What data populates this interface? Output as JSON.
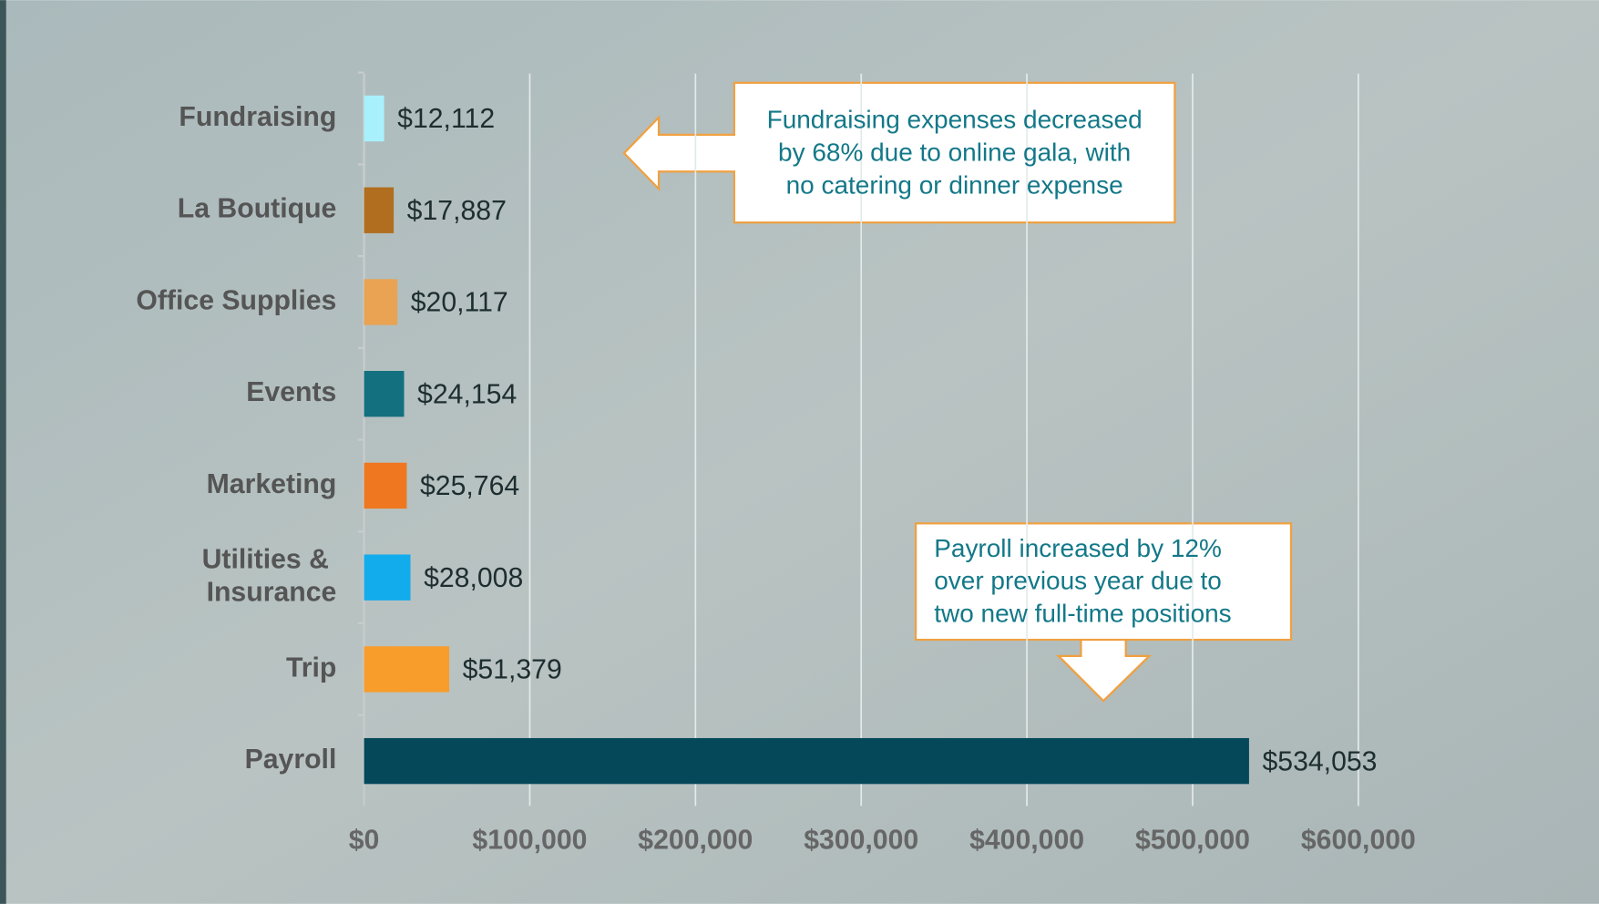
{
  "chart_data": {
    "type": "bar",
    "orientation": "horizontal",
    "categories": [
      "Fundraising",
      "La Boutique",
      "Office Supplies",
      "Events",
      "Marketing",
      "Utilities & Insurance",
      "Trip",
      "Payroll"
    ],
    "values": [
      12112,
      17887,
      20117,
      24154,
      25764,
      28008,
      51379,
      534053
    ],
    "value_labels": [
      "$12,112",
      "$17,887",
      "$20,117",
      "$24,154",
      "$25,764",
      "$28,008",
      "$51,379",
      "$534,053"
    ],
    "colors": [
      "#a8f0fc",
      "#b06e1e",
      "#e9a352",
      "#13707f",
      "#ef7720",
      "#12acec",
      "#f89c2c",
      "#04485a"
    ],
    "xlim": [
      0,
      600000
    ],
    "xticks": [
      {
        "value": 0,
        "label": "$0"
      },
      {
        "value": 100000,
        "label": "$100,000"
      },
      {
        "value": 200000,
        "label": "$200,000"
      },
      {
        "value": 300000,
        "label": "$300,000"
      },
      {
        "value": 400000,
        "label": "$400,000"
      },
      {
        "value": 500000,
        "label": "$500,000"
      },
      {
        "value": 600000,
        "label": "$600,000"
      }
    ],
    "grid": true,
    "annotations": [
      {
        "lines": [
          "Fundraising expenses decreased",
          "by 68% due to online gala, with",
          "no catering or dinner expense"
        ]
      },
      {
        "lines": [
          "Payroll increased by 12%",
          "over previous year due to",
          "two new full-time positions"
        ]
      }
    ]
  }
}
